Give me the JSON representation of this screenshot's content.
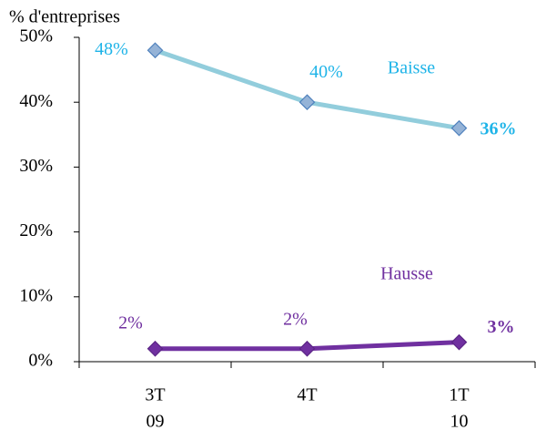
{
  "chart_data": {
    "type": "line",
    "y_label": "% d'entreprises",
    "categories": [
      [
        "3T",
        "09"
      ],
      [
        "4T"
      ],
      [
        "1T",
        "10"
      ]
    ],
    "series": [
      {
        "name": "Baisse",
        "color": "#92CDDC",
        "marker_color": "#95B3D7",
        "marker_stroke": "#4F81BD",
        "label_color": "#1FB4E8",
        "values": [
          48,
          40,
          36
        ],
        "value_labels": [
          "48%",
          "40%",
          "36%"
        ]
      },
      {
        "name": "Hausse",
        "color": "#7030A0",
        "marker_color": "#7030A0",
        "marker_stroke": "#5B2585",
        "label_color": "#7030A0",
        "values": [
          2,
          2,
          3
        ],
        "value_labels": [
          "2%",
          "2%",
          "3%"
        ]
      }
    ],
    "ylim": [
      0,
      50
    ],
    "yticks": [
      {
        "value": 0,
        "label": "0%"
      },
      {
        "value": 10,
        "label": "10%"
      },
      {
        "value": 20,
        "label": "20%"
      },
      {
        "value": 30,
        "label": "30%"
      },
      {
        "value": 40,
        "label": "40%"
      },
      {
        "value": 50,
        "label": "50%"
      }
    ],
    "grid": false
  }
}
